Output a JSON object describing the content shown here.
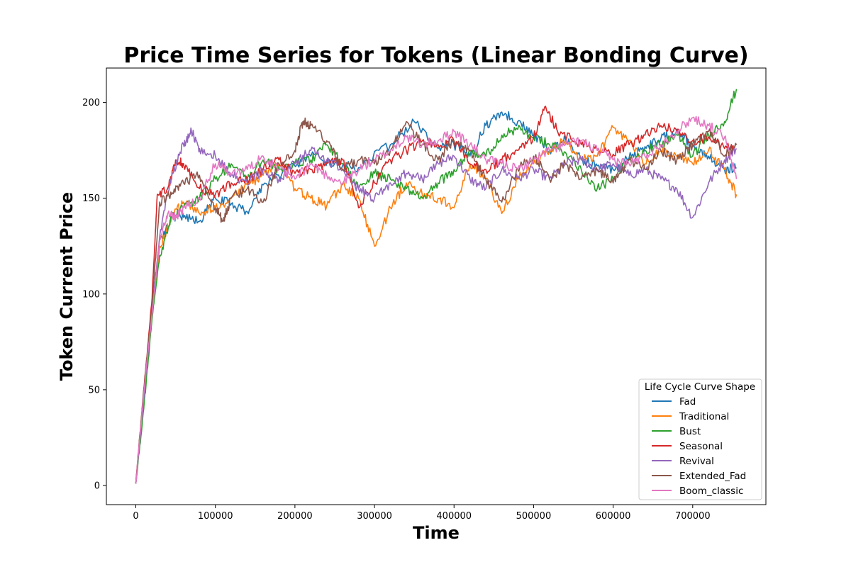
{
  "chart_data": {
    "type": "line",
    "title": "Price Time Series for Tokens (Linear Bonding Curve)",
    "xlabel": "Time",
    "ylabel": "Token Current Price",
    "xlim": [
      -37000,
      792000
    ],
    "ylim": [
      -10,
      218
    ],
    "xticks": [
      0,
      100000,
      200000,
      300000,
      400000,
      500000,
      600000,
      700000
    ],
    "yticks": [
      0,
      50,
      100,
      150,
      200
    ],
    "grid": false,
    "legend": {
      "title": "Life Cycle Curve Shape",
      "placement": "lower-right"
    },
    "series": [
      {
        "name": "Fad",
        "color": "#1f77b4",
        "points": [
          [
            0,
            1
          ],
          [
            10000,
            45
          ],
          [
            20000,
            90
          ],
          [
            30000,
            128
          ],
          [
            45000,
            140
          ],
          [
            60000,
            140
          ],
          [
            80000,
            138
          ],
          [
            100000,
            150
          ],
          [
            120000,
            147
          ],
          [
            140000,
            143
          ],
          [
            160000,
            157
          ],
          [
            190000,
            165
          ],
          [
            220000,
            172
          ],
          [
            250000,
            168
          ],
          [
            280000,
            166
          ],
          [
            320000,
            178
          ],
          [
            350000,
            190
          ],
          [
            380000,
            176
          ],
          [
            400000,
            178
          ],
          [
            420000,
            172
          ],
          [
            440000,
            188
          ],
          [
            460000,
            195
          ],
          [
            480000,
            190
          ],
          [
            500000,
            183
          ],
          [
            520000,
            175
          ],
          [
            540000,
            181
          ],
          [
            560000,
            170
          ],
          [
            580000,
            167
          ],
          [
            600000,
            165
          ],
          [
            620000,
            171
          ],
          [
            640000,
            177
          ],
          [
            660000,
            181
          ],
          [
            680000,
            186
          ],
          [
            700000,
            177
          ],
          [
            720000,
            172
          ],
          [
            740000,
            165
          ],
          [
            755000,
            166
          ]
        ]
      },
      {
        "name": "Traditional",
        "color": "#ff7f0e",
        "points": [
          [
            0,
            1
          ],
          [
            10000,
            45
          ],
          [
            20000,
            88
          ],
          [
            30000,
            125
          ],
          [
            45000,
            140
          ],
          [
            60000,
            148
          ],
          [
            80000,
            142
          ],
          [
            100000,
            145
          ],
          [
            120000,
            150
          ],
          [
            140000,
            157
          ],
          [
            160000,
            162
          ],
          [
            180000,
            168
          ],
          [
            200000,
            155
          ],
          [
            220000,
            150
          ],
          [
            240000,
            146
          ],
          [
            260000,
            157
          ],
          [
            280000,
            150
          ],
          [
            300000,
            125
          ],
          [
            320000,
            145
          ],
          [
            340000,
            158
          ],
          [
            360000,
            152
          ],
          [
            380000,
            150
          ],
          [
            400000,
            145
          ],
          [
            420000,
            168
          ],
          [
            440000,
            160
          ],
          [
            460000,
            142
          ],
          [
            480000,
            160
          ],
          [
            500000,
            168
          ],
          [
            520000,
            175
          ],
          [
            540000,
            180
          ],
          [
            560000,
            170
          ],
          [
            580000,
            172
          ],
          [
            600000,
            187
          ],
          [
            620000,
            180
          ],
          [
            640000,
            168
          ],
          [
            660000,
            175
          ],
          [
            680000,
            172
          ],
          [
            700000,
            168
          ],
          [
            720000,
            175
          ],
          [
            740000,
            165
          ],
          [
            755000,
            152
          ]
        ]
      },
      {
        "name": "Bust",
        "color": "#2ca02c",
        "points": [
          [
            0,
            1
          ],
          [
            10000,
            40
          ],
          [
            20000,
            85
          ],
          [
            30000,
            120
          ],
          [
            45000,
            140
          ],
          [
            60000,
            145
          ],
          [
            80000,
            150
          ],
          [
            100000,
            160
          ],
          [
            120000,
            168
          ],
          [
            140000,
            160
          ],
          [
            160000,
            170
          ],
          [
            180000,
            165
          ],
          [
            200000,
            168
          ],
          [
            220000,
            170
          ],
          [
            240000,
            178
          ],
          [
            260000,
            168
          ],
          [
            280000,
            155
          ],
          [
            300000,
            163
          ],
          [
            320000,
            160
          ],
          [
            340000,
            155
          ],
          [
            360000,
            150
          ],
          [
            380000,
            158
          ],
          [
            400000,
            165
          ],
          [
            420000,
            175
          ],
          [
            440000,
            172
          ],
          [
            460000,
            183
          ],
          [
            480000,
            186
          ],
          [
            500000,
            182
          ],
          [
            520000,
            178
          ],
          [
            540000,
            174
          ],
          [
            560000,
            165
          ],
          [
            580000,
            155
          ],
          [
            600000,
            160
          ],
          [
            620000,
            170
          ],
          [
            640000,
            175
          ],
          [
            660000,
            178
          ],
          [
            680000,
            183
          ],
          [
            700000,
            172
          ],
          [
            720000,
            183
          ],
          [
            740000,
            190
          ],
          [
            755000,
            207
          ]
        ]
      },
      {
        "name": "Seasonal",
        "color": "#d62728",
        "points": [
          [
            0,
            1
          ],
          [
            10000,
            50
          ],
          [
            20000,
            95
          ],
          [
            27000,
            152
          ],
          [
            40000,
            155
          ],
          [
            50000,
            170
          ],
          [
            60000,
            168
          ],
          [
            80000,
            155
          ],
          [
            100000,
            152
          ],
          [
            120000,
            158
          ],
          [
            140000,
            160
          ],
          [
            160000,
            165
          ],
          [
            180000,
            170
          ],
          [
            200000,
            163
          ],
          [
            220000,
            165
          ],
          [
            240000,
            168
          ],
          [
            260000,
            170
          ],
          [
            280000,
            145
          ],
          [
            300000,
            158
          ],
          [
            320000,
            170
          ],
          [
            340000,
            175
          ],
          [
            360000,
            180
          ],
          [
            380000,
            178
          ],
          [
            400000,
            180
          ],
          [
            420000,
            168
          ],
          [
            440000,
            165
          ],
          [
            460000,
            170
          ],
          [
            480000,
            175
          ],
          [
            500000,
            182
          ],
          [
            515000,
            198
          ],
          [
            530000,
            185
          ],
          [
            560000,
            178
          ],
          [
            580000,
            175
          ],
          [
            600000,
            173
          ],
          [
            620000,
            178
          ],
          [
            640000,
            183
          ],
          [
            660000,
            188
          ],
          [
            680000,
            185
          ],
          [
            700000,
            180
          ],
          [
            720000,
            182
          ],
          [
            740000,
            176
          ],
          [
            755000,
            178
          ]
        ]
      },
      {
        "name": "Revival",
        "color": "#9467bd",
        "points": [
          [
            0,
            1
          ],
          [
            10000,
            45
          ],
          [
            20000,
            90
          ],
          [
            30000,
            130
          ],
          [
            45000,
            162
          ],
          [
            60000,
            178
          ],
          [
            70000,
            185
          ],
          [
            80000,
            176
          ],
          [
            100000,
            172
          ],
          [
            120000,
            162
          ],
          [
            140000,
            158
          ],
          [
            160000,
            165
          ],
          [
            180000,
            160
          ],
          [
            200000,
            168
          ],
          [
            220000,
            175
          ],
          [
            240000,
            170
          ],
          [
            260000,
            165
          ],
          [
            280000,
            155
          ],
          [
            300000,
            150
          ],
          [
            320000,
            158
          ],
          [
            340000,
            163
          ],
          [
            360000,
            160
          ],
          [
            380000,
            168
          ],
          [
            400000,
            172
          ],
          [
            420000,
            160
          ],
          [
            440000,
            155
          ],
          [
            460000,
            165
          ],
          [
            480000,
            160
          ],
          [
            500000,
            165
          ],
          [
            520000,
            160
          ],
          [
            540000,
            168
          ],
          [
            560000,
            170
          ],
          [
            580000,
            165
          ],
          [
            600000,
            168
          ],
          [
            620000,
            162
          ],
          [
            640000,
            165
          ],
          [
            660000,
            160
          ],
          [
            680000,
            155
          ],
          [
            700000,
            140
          ],
          [
            720000,
            158
          ],
          [
            740000,
            170
          ],
          [
            755000,
            176
          ]
        ]
      },
      {
        "name": "Extended_Fad",
        "color": "#8c564b",
        "points": [
          [
            0,
            1
          ],
          [
            10000,
            50
          ],
          [
            20000,
            92
          ],
          [
            30000,
            148
          ],
          [
            45000,
            152
          ],
          [
            60000,
            158
          ],
          [
            80000,
            162
          ],
          [
            100000,
            145
          ],
          [
            110000,
            138
          ],
          [
            120000,
            150
          ],
          [
            140000,
            155
          ],
          [
            160000,
            148
          ],
          [
            180000,
            168
          ],
          [
            200000,
            175
          ],
          [
            210000,
            190
          ],
          [
            220000,
            188
          ],
          [
            240000,
            180
          ],
          [
            260000,
            165
          ],
          [
            280000,
            170
          ],
          [
            300000,
            168
          ],
          [
            320000,
            175
          ],
          [
            340000,
            190
          ],
          [
            360000,
            178
          ],
          [
            380000,
            170
          ],
          [
            400000,
            180
          ],
          [
            420000,
            175
          ],
          [
            440000,
            160
          ],
          [
            460000,
            148
          ],
          [
            480000,
            165
          ],
          [
            500000,
            172
          ],
          [
            520000,
            160
          ],
          [
            540000,
            168
          ],
          [
            560000,
            160
          ],
          [
            580000,
            165
          ],
          [
            600000,
            158
          ],
          [
            620000,
            170
          ],
          [
            640000,
            165
          ],
          [
            660000,
            175
          ],
          [
            680000,
            170
          ],
          [
            700000,
            178
          ],
          [
            720000,
            185
          ],
          [
            740000,
            172
          ],
          [
            755000,
            178
          ]
        ]
      },
      {
        "name": "Boom_classic",
        "color": "#e377c2",
        "points": [
          [
            0,
            1
          ],
          [
            10000,
            48
          ],
          [
            20000,
            88
          ],
          [
            30000,
            128
          ],
          [
            40000,
            142
          ],
          [
            50000,
            140
          ],
          [
            60000,
            145
          ],
          [
            80000,
            150
          ],
          [
            100000,
            168
          ],
          [
            120000,
            162
          ],
          [
            140000,
            165
          ],
          [
            160000,
            172
          ],
          [
            180000,
            165
          ],
          [
            200000,
            160
          ],
          [
            220000,
            168
          ],
          [
            240000,
            162
          ],
          [
            260000,
            158
          ],
          [
            280000,
            165
          ],
          [
            300000,
            170
          ],
          [
            320000,
            175
          ],
          [
            340000,
            182
          ],
          [
            360000,
            178
          ],
          [
            380000,
            180
          ],
          [
            400000,
            185
          ],
          [
            420000,
            178
          ],
          [
            440000,
            170
          ],
          [
            460000,
            168
          ],
          [
            480000,
            165
          ],
          [
            500000,
            170
          ],
          [
            520000,
            175
          ],
          [
            540000,
            178
          ],
          [
            560000,
            180
          ],
          [
            580000,
            175
          ],
          [
            600000,
            170
          ],
          [
            620000,
            168
          ],
          [
            640000,
            172
          ],
          [
            660000,
            178
          ],
          [
            680000,
            185
          ],
          [
            700000,
            192
          ],
          [
            720000,
            188
          ],
          [
            740000,
            182
          ],
          [
            755000,
            160
          ]
        ]
      }
    ]
  }
}
